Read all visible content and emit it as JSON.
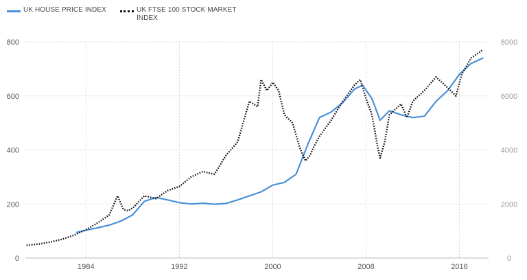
{
  "chart_data": {
    "type": "line",
    "title": "",
    "legend": "top-left",
    "grid": true,
    "x_ticks": [
      1984,
      1992,
      2000,
      2008,
      2016
    ],
    "xlim": [
      1978.8,
      2018.5
    ],
    "y_left": {
      "ylim": [
        0,
        800
      ],
      "ticks": [
        0,
        200,
        400,
        600,
        800
      ]
    },
    "y_right": {
      "ylim": [
        0,
        8000
      ],
      "ticks": [
        0,
        2000,
        4000,
        6000,
        8000
      ]
    },
    "series": [
      {
        "name": "UK HOUSE PRICE INDEX",
        "axis": "left",
        "color": "#4a90d9",
        "style": "solid",
        "x": [
          1983.2,
          1984,
          1985,
          1986,
          1987,
          1988,
          1989,
          1990,
          1991,
          1992,
          1993,
          1994,
          1995,
          1996,
          1997,
          1998,
          1999,
          2000,
          2001,
          2002,
          2003,
          2004,
          2005,
          2006,
          2007,
          2007.7,
          2008.5,
          2009.2,
          2010,
          2011,
          2012,
          2013,
          2014,
          2015,
          2016,
          2017,
          2018
        ],
        "y": [
          95,
          103,
          112,
          122,
          137,
          160,
          210,
          224,
          215,
          205,
          200,
          203,
          199,
          202,
          215,
          230,
          245,
          270,
          280,
          310,
          420,
          520,
          540,
          575,
          625,
          640,
          590,
          510,
          545,
          530,
          520,
          525,
          580,
          620,
          680,
          720,
          740
        ]
      },
      {
        "name": "UK FTSE 100 STOCK MARKET INDEX",
        "axis": "right",
        "color": "#111111",
        "style": "dotted",
        "x": [
          1978.9,
          1980,
          1981,
          1982,
          1983,
          1984,
          1985,
          1986,
          1986.7,
          1987.2,
          1987.6,
          1988,
          1989,
          1990,
          1991,
          1992,
          1993,
          1994,
          1995,
          1996,
          1997,
          1998,
          1998.7,
          1999,
          1999.5,
          2000,
          2000.5,
          2001,
          2001.7,
          2002.3,
          2002.8,
          2003.2,
          2003.5,
          2004,
          2005,
          2006,
          2007,
          2007.5,
          2008,
          2008.5,
          2009,
          2009.2,
          2009.6,
          2010,
          2010.5,
          2011,
          2011.5,
          2012,
          2013,
          2014,
          2015,
          2015.7,
          2016.2,
          2017,
          2018
        ],
        "y": [
          470,
          520,
          600,
          700,
          850,
          1050,
          1300,
          1600,
          2300,
          1800,
          1750,
          1850,
          2300,
          2200,
          2500,
          2650,
          3000,
          3200,
          3100,
          3800,
          4300,
          5800,
          5600,
          6600,
          6200,
          6500,
          6200,
          5300,
          5000,
          4100,
          3600,
          3800,
          4100,
          4500,
          5100,
          5800,
          6400,
          6600,
          5900,
          5300,
          4100,
          3700,
          4300,
          5300,
          5500,
          5700,
          5200,
          5800,
          6200,
          6700,
          6300,
          6000,
          6800,
          7400,
          7700
        ]
      }
    ]
  }
}
